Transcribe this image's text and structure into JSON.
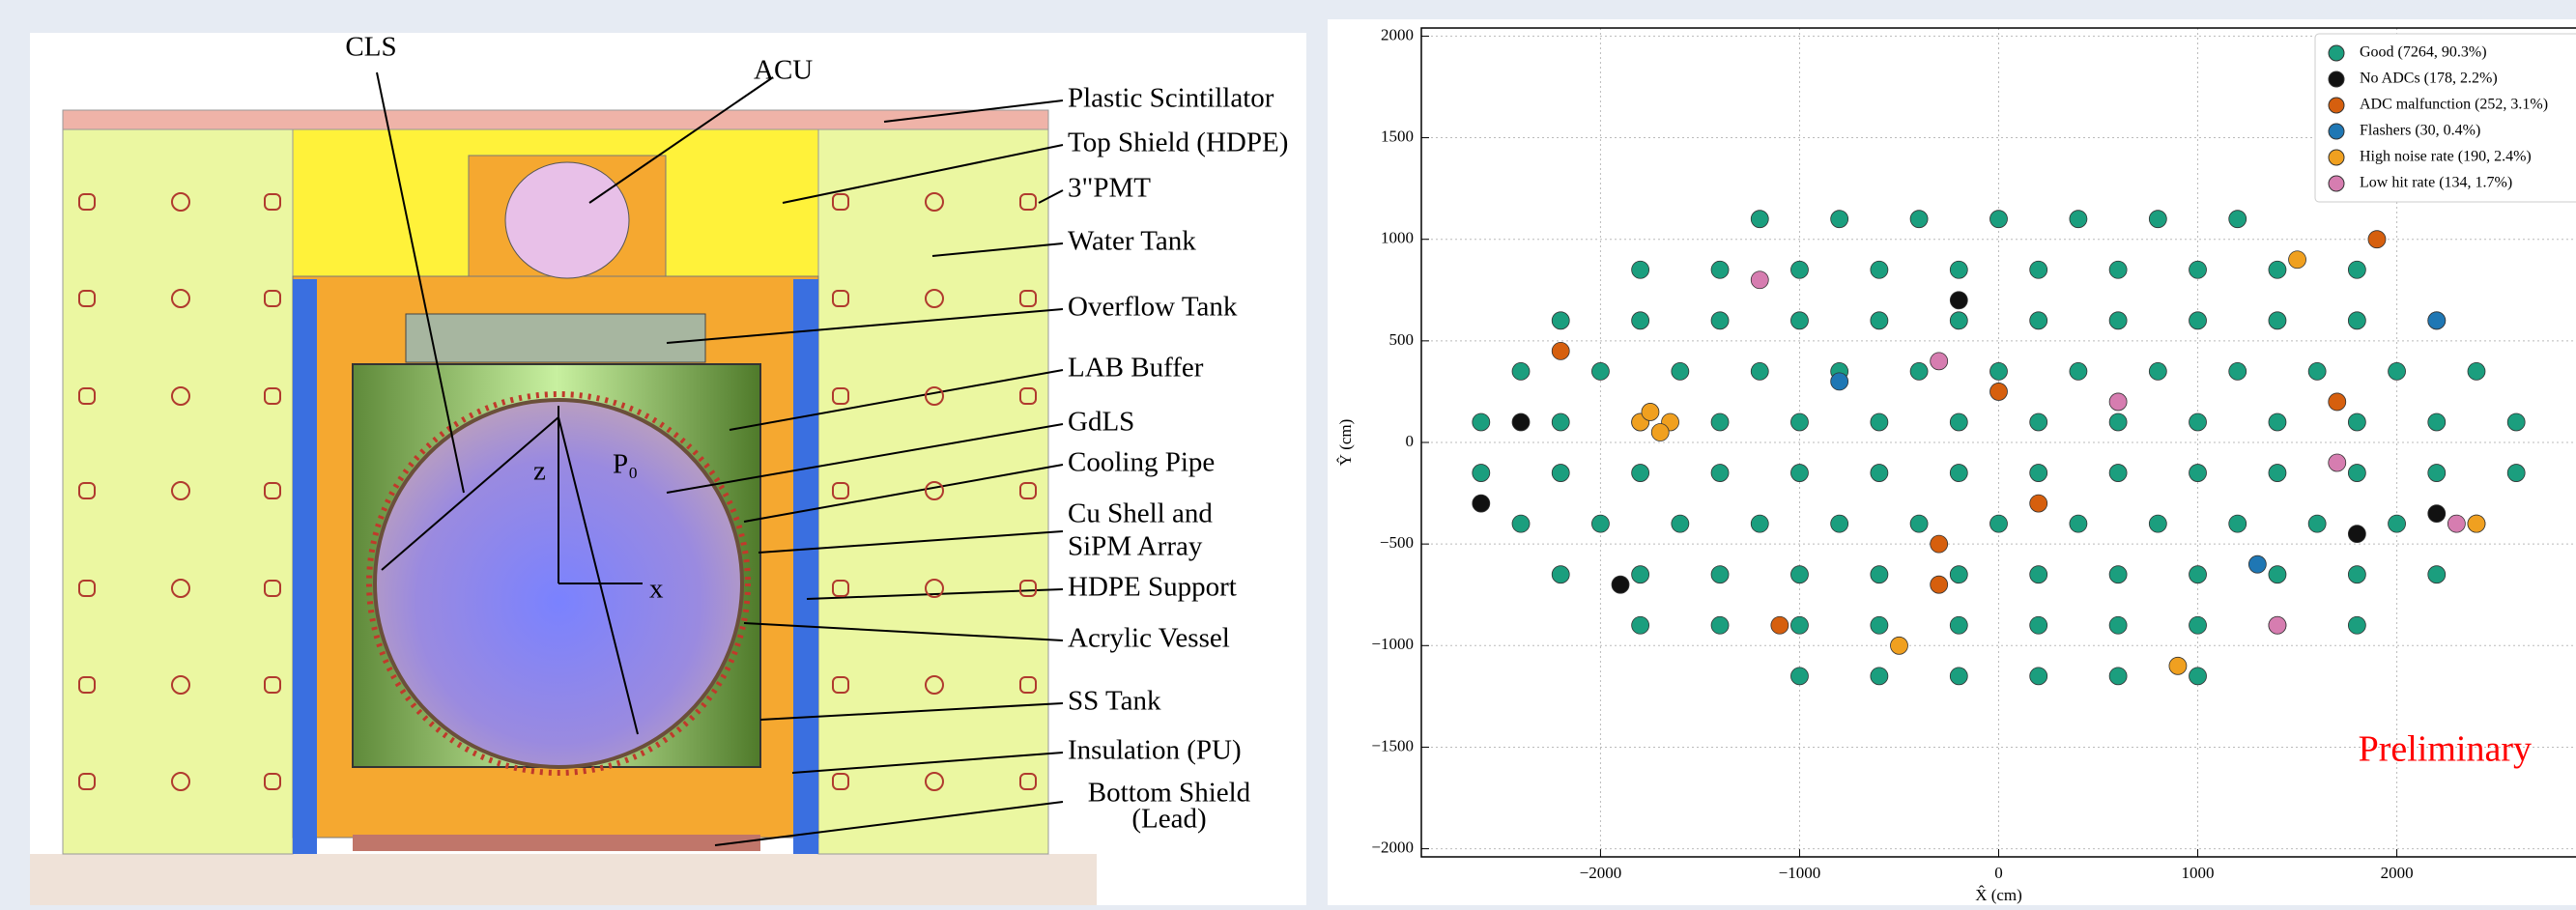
{
  "diagram": {
    "labels": [
      "CLS",
      "ACU",
      "Plastic Scintillator",
      "Top Shield (HDPE)",
      "3\"PMT",
      "Water Tank",
      "Overflow Tank",
      "LAB Buffer",
      "GdLS",
      "Cooling Pipe",
      "Cu Shell and",
      "SiPM Array",
      "HDPE Support",
      "Acrylic Vessel",
      "SS Tank",
      "Insulation (PU)",
      "Bottom Shield",
      "(Lead)"
    ],
    "axes": [
      "z",
      "P₀",
      "x"
    ]
  },
  "chart_data": {
    "type": "scatter",
    "xlabel": "X̂ (cm)",
    "ylabel": "Ŷ (cm)",
    "annotation": "Preliminary",
    "xlim": [
      -2900,
      2900
    ],
    "ylim": [
      -2040,
      2040
    ],
    "grid": true,
    "legend": "upper right",
    "xticks": [
      {
        "value": -2000,
        "label": "−2000"
      },
      {
        "value": -1000,
        "label": "−1000"
      },
      0,
      1000,
      2000
    ],
    "yticks": [
      {
        "value": -2000,
        "label": "−2000"
      },
      {
        "value": -1500,
        "label": "−1500"
      },
      {
        "value": -1000,
        "label": "−1000"
      },
      {
        "value": -500,
        "label": "−500"
      },
      0,
      500,
      1000,
      1500,
      2000
    ],
    "series": [
      {
        "name": "Good (7264, 90.3%)",
        "color": "#1b9e7e",
        "x": [
          -1200,
          -800,
          -400,
          0,
          400,
          800,
          1200,
          -1800,
          -1400,
          -1000,
          -600,
          -200,
          200,
          600,
          1000,
          1400,
          1800,
          -2200,
          -1800,
          -1400,
          -1000,
          -600,
          -200,
          200,
          600,
          1000,
          1400,
          1800,
          2200,
          -2400,
          -2000,
          -1600,
          -1200,
          -800,
          -400,
          0,
          400,
          800,
          1200,
          1600,
          2000,
          2400,
          -2600,
          -2200,
          -1800,
          -1400,
          -1000,
          -600,
          -200,
          200,
          600,
          1000,
          1400,
          1800,
          2200,
          2600,
          -2600,
          -2200,
          -1800,
          -1400,
          -1000,
          -600,
          -200,
          200,
          600,
          1000,
          1400,
          1800,
          2200,
          2600,
          -2400,
          -2000,
          -1600,
          -1200,
          -800,
          -400,
          0,
          400,
          800,
          1200,
          1600,
          2000,
          2400,
          -2200,
          -1800,
          -1400,
          -1000,
          -600,
          -200,
          200,
          600,
          1000,
          1400,
          1800,
          2200,
          -1800,
          -1400,
          -1000,
          -600,
          -200,
          200,
          600,
          1000,
          1400,
          1800,
          -1000,
          -600,
          -200,
          200,
          600,
          1000
        ],
        "y": [
          1100,
          1100,
          1100,
          1100,
          1100,
          1100,
          1100,
          850,
          850,
          850,
          850,
          850,
          850,
          850,
          850,
          850,
          850,
          600,
          600,
          600,
          600,
          600,
          600,
          600,
          600,
          600,
          600,
          600,
          600,
          350,
          350,
          350,
          350,
          350,
          350,
          350,
          350,
          350,
          350,
          350,
          350,
          350,
          100,
          100,
          100,
          100,
          100,
          100,
          100,
          100,
          100,
          100,
          100,
          100,
          100,
          100,
          -150,
          -150,
          -150,
          -150,
          -150,
          -150,
          -150,
          -150,
          -150,
          -150,
          -150,
          -150,
          -150,
          -150,
          -400,
          -400,
          -400,
          -400,
          -400,
          -400,
          -400,
          -400,
          -400,
          -400,
          -400,
          -400,
          -400,
          -650,
          -650,
          -650,
          -650,
          -650,
          -650,
          -650,
          -650,
          -650,
          -650,
          -650,
          -650,
          -900,
          -900,
          -900,
          -900,
          -900,
          -900,
          -900,
          -900,
          -900,
          -900,
          -1150,
          -1150,
          -1150,
          -1150,
          -1150,
          -1150
        ]
      },
      {
        "name": "No ADCs (178, 2.2%)",
        "color": "#111111",
        "x": [
          -2600,
          -1900,
          -200,
          1800,
          2200,
          -2400
        ],
        "y": [
          -300,
          -700,
          700,
          -450,
          -350,
          100
        ]
      },
      {
        "name": "ADC malfunction (252, 3.1%)",
        "color": "#d65f0e",
        "x": [
          -2200,
          -300,
          -300,
          0,
          200,
          1700,
          1900,
          -1100
        ],
        "y": [
          450,
          -500,
          -700,
          250,
          -300,
          200,
          1000,
          -900
        ]
      },
      {
        "name": "Flashers (30, 0.4%)",
        "color": "#1f77b4",
        "x": [
          -800,
          1300,
          2200
        ],
        "y": [
          300,
          -600,
          600
        ]
      },
      {
        "name": "High noise rate (190, 2.4%)",
        "color": "#f0a020",
        "x": [
          -1800,
          -1750,
          -1650,
          -1700,
          900,
          -500,
          2400,
          1500
        ],
        "y": [
          100,
          150,
          100,
          50,
          -1100,
          -1000,
          -400,
          900
        ]
      },
      {
        "name": "Low hit rate (134, 1.7%)",
        "color": "#d67db0",
        "x": [
          -1200,
          1400,
          2300,
          600,
          -300,
          1700
        ],
        "y": [
          800,
          -900,
          -400,
          200,
          400,
          -100
        ]
      }
    ]
  }
}
